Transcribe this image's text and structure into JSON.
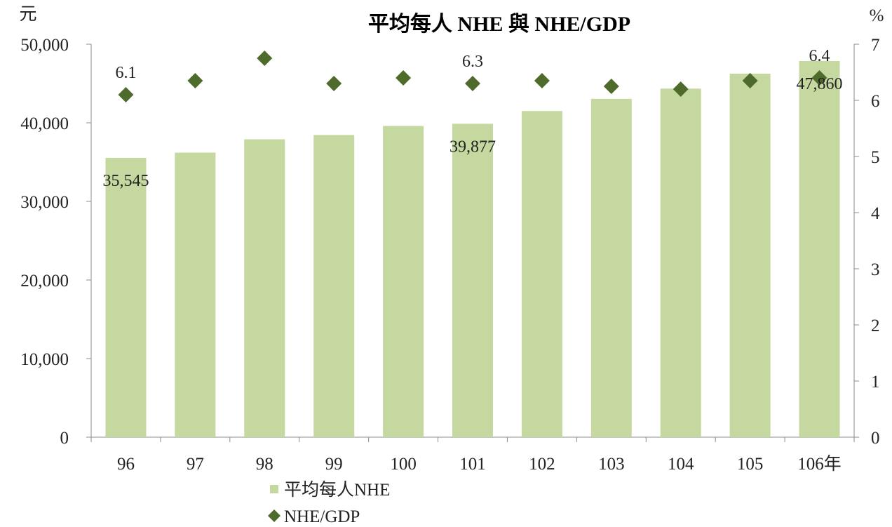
{
  "chart_data": {
    "type": "bar",
    "title": "平均每人 NHE 與 NHE/GDP",
    "y_left_unit": "元",
    "y_right_unit": "%",
    "categories": [
      "96",
      "97",
      "98",
      "99",
      "100",
      "101",
      "102",
      "103",
      "104",
      "105",
      "106年"
    ],
    "ylim_left": [
      0,
      50000
    ],
    "ylim_right": [
      0,
      7
    ],
    "yticks_left": [
      "0",
      "10,000",
      "20,000",
      "30,000",
      "40,000",
      "50,000"
    ],
    "yticks_right": [
      "0",
      "1",
      "2",
      "3",
      "4",
      "5",
      "6",
      "7"
    ],
    "series": [
      {
        "name": "平均每人NHE",
        "type": "bar",
        "axis": "left",
        "color": "#c4d89f",
        "values": [
          35545,
          36200,
          37900,
          38450,
          39600,
          39877,
          41500,
          43050,
          44350,
          46250,
          47860
        ]
      },
      {
        "name": "NHE/GDP",
        "type": "scatter",
        "axis": "right",
        "marker": "diamond",
        "color": "#4f6b2b",
        "values": [
          6.1,
          6.35,
          6.75,
          6.3,
          6.4,
          6.3,
          6.35,
          6.25,
          6.2,
          6.35,
          6.4
        ]
      }
    ],
    "data_labels": [
      {
        "series": 0,
        "index": 0,
        "text": "35,545"
      },
      {
        "series": 0,
        "index": 5,
        "text": "39,877"
      },
      {
        "series": 0,
        "index": 10,
        "text": "47,860"
      },
      {
        "series": 1,
        "index": 0,
        "text": "6.1"
      },
      {
        "series": 1,
        "index": 5,
        "text": "6.3"
      },
      {
        "series": 1,
        "index": 10,
        "text": "6.4"
      }
    ],
    "legend": {
      "placement": "bottom-left",
      "items": [
        {
          "label": "平均每人NHE",
          "marker": "square",
          "color": "#c4d89f"
        },
        {
          "label": "NHE/GDP",
          "marker": "diamond",
          "color": "#4f6b2b"
        }
      ]
    },
    "grid": false
  }
}
